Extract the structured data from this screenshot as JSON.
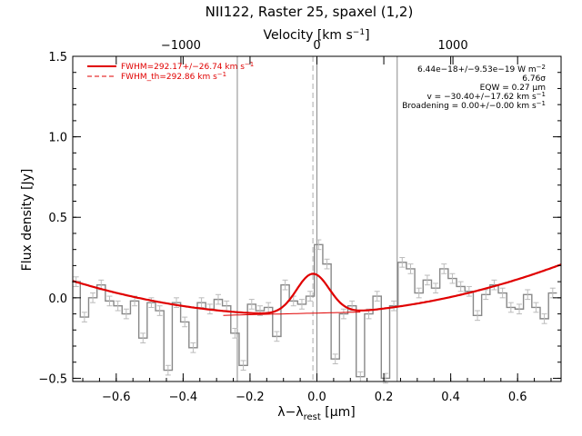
{
  "chart_data": {
    "type": "line",
    "title": "NII122, Raster 25, spaxel (1,2)",
    "xlabel": "λ−λ",
    "xlabel_sub": "rest",
    "xlabel_unit": " [μm]",
    "ylabel": "Flux density [Jy]",
    "top_axis_label": "Velocity [km s",
    "top_axis_label_sup": "−1",
    "top_axis_label_end": "]",
    "xlim": [
      -0.73,
      0.73
    ],
    "ylim": [
      -0.52,
      1.5
    ],
    "x_ticks": [
      -0.6,
      -0.4,
      -0.2,
      0.0,
      0.2,
      0.4,
      0.6
    ],
    "x_tick_labels": [
      "−0.6",
      "−0.4",
      "−0.2",
      "0.0",
      "0.2",
      "0.4",
      "0.6"
    ],
    "y_ticks": [
      -0.5,
      0.0,
      0.5,
      1.0,
      1.5
    ],
    "y_tick_labels": [
      "−0.5",
      "0.0",
      "0.5",
      "1.0",
      "1.5"
    ],
    "top_ticks_velocity": [
      -1000,
      0,
      1000
    ],
    "top_tick_labels": [
      "−1000",
      "0",
      "1000"
    ],
    "km_per_um": 2459,
    "vertical_lines": [
      -0.238,
      0.0,
      0.24
    ],
    "dashed_vertical_line": -0.012,
    "legend": [
      {
        "label": "FWHM=292.17+/−26.74 km s",
        "sup": "−1",
        "style": "solid",
        "color": "#e00000"
      },
      {
        "label": "FWHM_th=292.86 km s",
        "sup": "−1",
        "style": "dashed",
        "color": "#e00000"
      }
    ],
    "annotations": [
      {
        "text": "6.44e−18+/−9.53e−19 W m",
        "sup": "−2"
      },
      {
        "text": "6.76σ",
        "sup": ""
      },
      {
        "text": "EQW = 0.27 μm",
        "sup": ""
      },
      {
        "text": "v = −30.40+/−17.62 km s",
        "sup": "−1"
      },
      {
        "text": "Broadening = 0.00+/−0.00 km s",
        "sup": "−1"
      }
    ],
    "series": [
      {
        "type": "step",
        "color": "#888888",
        "x": [
          -0.72,
          -0.695,
          -0.67,
          -0.645,
          -0.62,
          -0.595,
          -0.57,
          -0.545,
          -0.52,
          -0.495,
          -0.47,
          -0.445,
          -0.42,
          -0.395,
          -0.37,
          -0.345,
          -0.32,
          -0.295,
          -0.27,
          -0.245,
          -0.22,
          -0.195,
          -0.17,
          -0.145,
          -0.12,
          -0.095,
          -0.07,
          -0.045,
          -0.02,
          0.005,
          0.03,
          0.055,
          0.08,
          0.105,
          0.13,
          0.155,
          0.18,
          0.205,
          0.23,
          0.255,
          0.28,
          0.305,
          0.33,
          0.355,
          0.38,
          0.405,
          0.43,
          0.455,
          0.48,
          0.505,
          0.53,
          0.555,
          0.58,
          0.605,
          0.63,
          0.655,
          0.68,
          0.705
        ],
        "y": [
          0.1,
          -0.12,
          0.0,
          0.08,
          -0.02,
          -0.05,
          -0.1,
          -0.02,
          -0.25,
          -0.03,
          -0.08,
          -0.45,
          -0.03,
          -0.15,
          -0.31,
          -0.03,
          -0.07,
          -0.01,
          -0.05,
          -0.22,
          -0.42,
          -0.04,
          -0.08,
          -0.06,
          -0.24,
          0.08,
          -0.02,
          -0.04,
          0.01,
          0.33,
          0.21,
          -0.38,
          -0.1,
          -0.05,
          -0.49,
          -0.1,
          0.01,
          -0.5,
          -0.05,
          0.22,
          0.18,
          0.03,
          0.11,
          0.06,
          0.18,
          0.12,
          0.07,
          0.04,
          -0.11,
          0.02,
          0.08,
          0.03,
          -0.06,
          -0.07,
          0.02,
          -0.06,
          -0.13,
          0.03
        ],
        "err": 0.03
      },
      {
        "name": "FWHM=292.17+/−26.74 km s−1",
        "type": "line",
        "color": "#e00000",
        "baseline": "0.08 + 0.48*x*x + 0.07*x - 0.18",
        "peak_center": -0.012,
        "peak_amplitude": 0.25,
        "peak_sigma": 0.049
      }
    ]
  }
}
